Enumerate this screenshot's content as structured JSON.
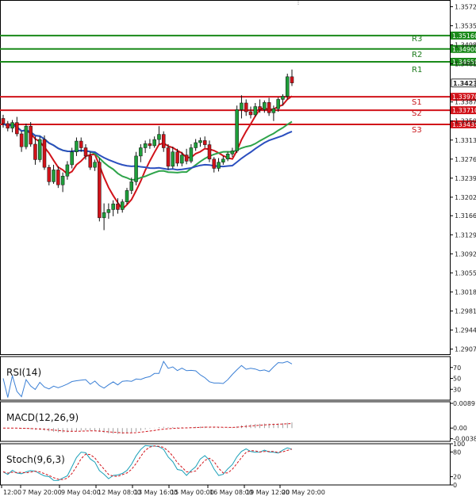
{
  "chart_data": {
    "type": "candlestick",
    "price_axis": {
      "ticks": [
        "1.35720",
        "1.35350",
        "1.34980",
        "1.34610",
        "1.34238",
        "1.33870",
        "1.33500",
        "1.33130",
        "1.32760",
        "1.32390",
        "1.32020",
        "1.31660",
        "1.31290",
        "1.30920",
        "1.30550",
        "1.30180",
        "1.29810",
        "1.29440",
        "1.29070"
      ],
      "range": [
        1.2897,
        1.3582
      ]
    },
    "time_axis": {
      "labels": [
        "12:00",
        "7 May 20:00",
        "9 May 04:00",
        "12 May 08:00",
        "13 May 16:00",
        "15 May 00:00",
        "16 May 08:00",
        "19 May 12:00",
        "20 May 20:00"
      ]
    },
    "current_price": "1.34238",
    "levels": [
      {
        "name": "R3",
        "label": "1.35160",
        "value": 1.3516,
        "kind": "resistance",
        "color": "#1a8a1a"
      },
      {
        "name": "R2",
        "label": "1.34900",
        "value": 1.349,
        "kind": "resistance",
        "color": "#1a8a1a"
      },
      {
        "name": "R1",
        "label": "1.34650",
        "value": 1.3465,
        "kind": "resistance",
        "color": "#1a8a1a"
      },
      {
        "name": "S1",
        "label": "1.33970",
        "value": 1.3397,
        "kind": "support",
        "color": "#d1131a"
      },
      {
        "name": "S2",
        "label": "1.33710",
        "value": 1.3371,
        "kind": "support",
        "color": "#d1131a"
      },
      {
        "name": "S3",
        "label": "1.33435",
        "value": 1.33435,
        "kind": "support",
        "color": "#d1131a"
      }
    ],
    "candles": [
      [
        1.3355,
        1.3362,
        1.3337,
        1.3345
      ],
      [
        1.3345,
        1.335,
        1.333,
        1.3336
      ],
      [
        1.3336,
        1.3352,
        1.3328,
        1.3347
      ],
      [
        1.3347,
        1.3358,
        1.332,
        1.3325
      ],
      [
        1.3325,
        1.333,
        1.329,
        1.33
      ],
      [
        1.33,
        1.3345,
        1.3295,
        1.334
      ],
      [
        1.334,
        1.3348,
        1.33,
        1.3305
      ],
      [
        1.3305,
        1.332,
        1.3265,
        1.3275
      ],
      [
        1.3275,
        1.332,
        1.327,
        1.3314
      ],
      [
        1.3314,
        1.3322,
        1.3255,
        1.326
      ],
      [
        1.326,
        1.3265,
        1.3225,
        1.3232
      ],
      [
        1.3232,
        1.3265,
        1.3228,
        1.3255
      ],
      [
        1.3255,
        1.3262,
        1.322,
        1.3226
      ],
      [
        1.3226,
        1.325,
        1.3212,
        1.3243
      ],
      [
        1.3243,
        1.3272,
        1.3236,
        1.3265
      ],
      [
        1.3265,
        1.3298,
        1.3258,
        1.329
      ],
      [
        1.329,
        1.3318,
        1.3282,
        1.3311
      ],
      [
        1.3311,
        1.3318,
        1.329,
        1.3298
      ],
      [
        1.3298,
        1.3305,
        1.3275,
        1.3282
      ],
      [
        1.3282,
        1.329,
        1.3255,
        1.326
      ],
      [
        1.326,
        1.3275,
        1.3253,
        1.327
      ],
      [
        1.327,
        1.3278,
        1.3155,
        1.3162
      ],
      [
        1.3162,
        1.319,
        1.3138,
        1.3172
      ],
      [
        1.3172,
        1.319,
        1.316,
        1.3178
      ],
      [
        1.3178,
        1.3196,
        1.3165,
        1.3189
      ],
      [
        1.3189,
        1.32,
        1.317,
        1.3178
      ],
      [
        1.3178,
        1.3198,
        1.3172,
        1.3193
      ],
      [
        1.3193,
        1.322,
        1.3188,
        1.3215
      ],
      [
        1.3215,
        1.324,
        1.3208,
        1.3232
      ],
      [
        1.3232,
        1.329,
        1.3225,
        1.3282
      ],
      [
        1.3282,
        1.3305,
        1.327,
        1.3298
      ],
      [
        1.3298,
        1.3312,
        1.3288,
        1.3306
      ],
      [
        1.3306,
        1.3315,
        1.3296,
        1.3302
      ],
      [
        1.3302,
        1.332,
        1.3298,
        1.3314
      ],
      [
        1.3314,
        1.334,
        1.3305,
        1.3324
      ],
      [
        1.3324,
        1.333,
        1.329,
        1.3298
      ],
      [
        1.3298,
        1.3305,
        1.3255,
        1.3262
      ],
      [
        1.3262,
        1.33,
        1.3258,
        1.329
      ],
      [
        1.329,
        1.3296,
        1.3262,
        1.3268
      ],
      [
        1.3268,
        1.329,
        1.3262,
        1.3284
      ],
      [
        1.3284,
        1.3296,
        1.3266,
        1.3272
      ],
      [
        1.3272,
        1.3305,
        1.3268,
        1.3298
      ],
      [
        1.3298,
        1.3315,
        1.3292,
        1.3308
      ],
      [
        1.3308,
        1.3318,
        1.33,
        1.3312
      ],
      [
        1.3312,
        1.332,
        1.3298,
        1.3304
      ],
      [
        1.3304,
        1.3312,
        1.327,
        1.3276
      ],
      [
        1.3276,
        1.328,
        1.325,
        1.3258
      ],
      [
        1.3258,
        1.3278,
        1.3252,
        1.327
      ],
      [
        1.327,
        1.3282,
        1.3265,
        1.3276
      ],
      [
        1.3276,
        1.329,
        1.3272,
        1.3286
      ],
      [
        1.3286,
        1.3298,
        1.328,
        1.3292
      ],
      [
        1.3292,
        1.338,
        1.3288,
        1.3372
      ],
      [
        1.3372,
        1.34,
        1.3355,
        1.3385
      ],
      [
        1.3385,
        1.3392,
        1.336,
        1.3368
      ],
      [
        1.3368,
        1.3378,
        1.3355,
        1.3362
      ],
      [
        1.3362,
        1.3385,
        1.3358,
        1.3378
      ],
      [
        1.3378,
        1.3392,
        1.3366,
        1.3372
      ],
      [
        1.3372,
        1.339,
        1.3366,
        1.3386
      ],
      [
        1.3386,
        1.3395,
        1.336,
        1.3366
      ],
      [
        1.3366,
        1.338,
        1.335,
        1.3374
      ],
      [
        1.3374,
        1.3396,
        1.3368,
        1.3392
      ],
      [
        1.3392,
        1.3402,
        1.338,
        1.3398
      ],
      [
        1.3398,
        1.3442,
        1.3392,
        1.3436
      ],
      [
        1.3436,
        1.345,
        1.3418,
        1.3424
      ]
    ],
    "moving_averages": [
      {
        "color": "#d1131a"
      },
      {
        "color": "#2ea44a"
      },
      {
        "color": "#2b4fbf"
      }
    ],
    "indicators": [
      {
        "name": "RSI(14)",
        "ticks": [
          "70",
          "50",
          "30"
        ],
        "range": [
          10,
          90
        ],
        "color": "#3a7fd5"
      },
      {
        "name": "MACD(12,26,9)",
        "ticks": [
          "0.008918",
          "0.00",
          "-0.003851"
        ],
        "range": [
          -0.0048,
          0.0095
        ],
        "color": "#d1131a"
      },
      {
        "name": "Stoch(9,6,3)",
        "ticks": [
          "100",
          "80",
          "20",
          "0"
        ],
        "range": [
          0,
          100
        ],
        "color": "#1aa0b8",
        "signal_color": "#d1131a"
      }
    ]
  }
}
